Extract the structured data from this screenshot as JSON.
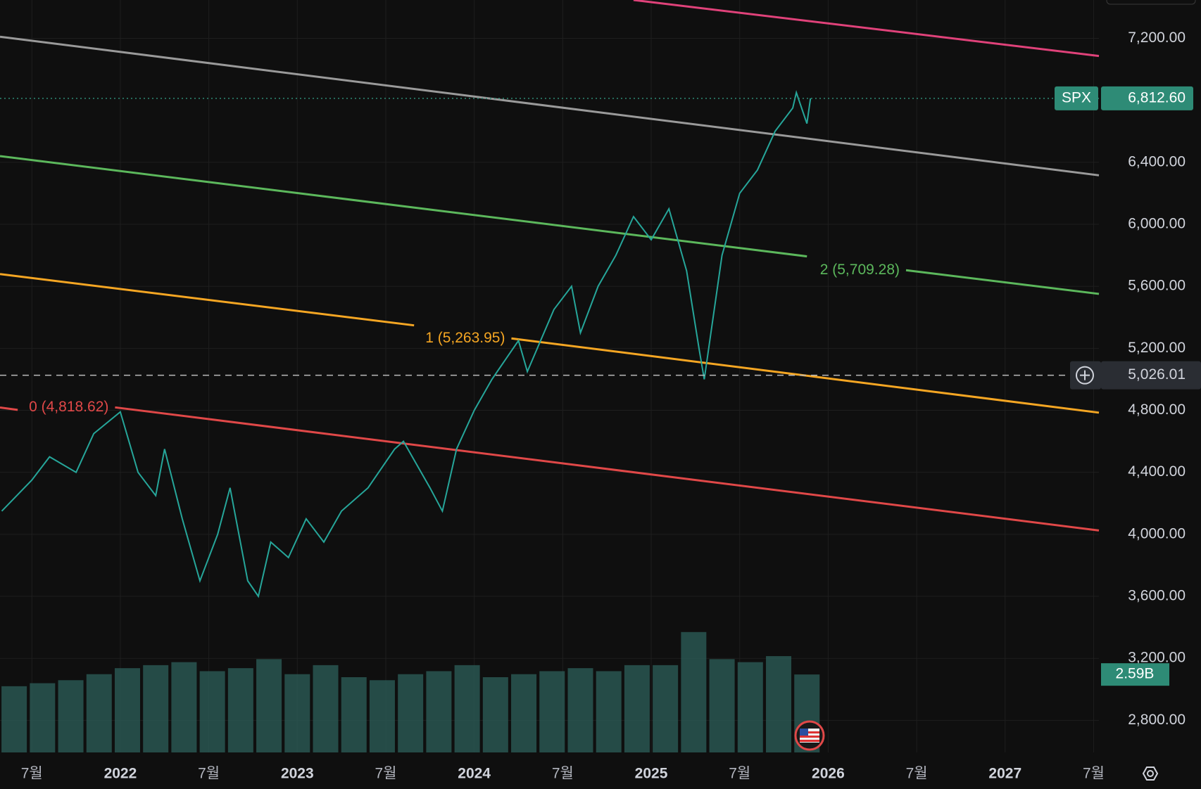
{
  "chart_data": {
    "type": "line",
    "xlim": [
      2021.32,
      2027.53
    ],
    "ylim": [
      2593,
      7447
    ],
    "grid": true,
    "xticks": [
      {
        "value": 2021.5,
        "label": "7월"
      },
      2022,
      {
        "value": 2022.5,
        "label": "7월"
      },
      2023,
      {
        "value": 2023.5,
        "label": "7월"
      },
      2024,
      {
        "value": 2024.5,
        "label": "7월"
      },
      2025,
      {
        "value": 2025.5,
        "label": "7월"
      },
      2026,
      {
        "value": 2026.5,
        "label": "7월"
      },
      2027,
      {
        "value": 2027.5,
        "label": "7월"
      }
    ],
    "yticks": [
      {
        "value": 2800,
        "label": "2,800.00"
      },
      {
        "value": 3200,
        "label": "3,200.00"
      },
      {
        "value": 3600,
        "label": "3,600.00"
      },
      {
        "value": 4000,
        "label": "4,000.00"
      },
      {
        "value": 4400,
        "label": "4,400.00"
      },
      {
        "value": 4800,
        "label": "4,800.00"
      },
      {
        "value": 5200,
        "label": "5,200.00"
      },
      {
        "value": 5600,
        "label": "5,600.00"
      },
      {
        "value": 6000,
        "label": "6,000.00"
      },
      {
        "value": 6400,
        "label": "6,400.00"
      },
      {
        "value": 7200,
        "label": "7,200.00"
      }
    ],
    "series": [
      {
        "name": "SPX",
        "color": "#26a69a",
        "x": [
          2021.33,
          2021.5,
          2021.6,
          2021.75,
          2021.85,
          2022.0,
          2022.1,
          2022.2,
          2022.25,
          2022.35,
          2022.45,
          2022.55,
          2022.62,
          2022.72,
          2022.78,
          2022.85,
          2022.95,
          2023.05,
          2023.15,
          2023.25,
          2023.4,
          2023.55,
          2023.6,
          2023.75,
          2023.82,
          2023.9,
          2024.0,
          2024.1,
          2024.25,
          2024.3,
          2024.45,
          2024.55,
          2024.6,
          2024.7,
          2024.8,
          2024.9,
          2025.0,
          2025.1,
          2025.2,
          2025.27,
          2025.3,
          2025.4,
          2025.5,
          2025.6,
          2025.7,
          2025.8,
          2025.82,
          2025.88,
          2025.9
        ],
        "values": [
          4150,
          4350,
          4500,
          4400,
          4650,
          4790,
          4400,
          4250,
          4550,
          4100,
          3700,
          4000,
          4300,
          3700,
          3600,
          3950,
          3850,
          4100,
          3950,
          4150,
          4300,
          4550,
          4600,
          4300,
          4150,
          4550,
          4800,
          5000,
          5250,
          5050,
          5450,
          5600,
          5300,
          5600,
          5800,
          6050,
          5900,
          6100,
          5700,
          5200,
          5000,
          5800,
          6200,
          6350,
          6600,
          6750,
          6850,
          6650,
          6812.6
        ]
      }
    ],
    "last_price": {
      "value": 6812.6,
      "label": "6,812.60"
    },
    "crosshair": {
      "value": 5026.01,
      "label": "5,026.01"
    },
    "volume": {
      "color": "#2b5a55",
      "x": [
        2021.4,
        2021.56,
        2021.72,
        2021.88,
        2022.04,
        2022.2,
        2022.36,
        2022.52,
        2022.68,
        2022.84,
        2023.0,
        2023.16,
        2023.32,
        2023.48,
        2023.64,
        2023.8,
        2023.96,
        2024.12,
        2024.28,
        2024.44,
        2024.6,
        2024.76,
        2024.92,
        2025.08,
        2025.24,
        2025.4,
        2025.56,
        2025.72,
        2025.88
      ],
      "values": [
        2.2,
        2.3,
        2.4,
        2.6,
        2.8,
        2.9,
        3.0,
        2.7,
        2.8,
        3.1,
        2.6,
        2.9,
        2.5,
        2.4,
        2.6,
        2.7,
        2.9,
        2.5,
        2.6,
        2.7,
        2.8,
        2.7,
        2.9,
        2.9,
        4.0,
        3.1,
        3.0,
        3.2,
        2.59
      ],
      "ylim": [
        0,
        25
      ],
      "last": {
        "value": 2.59,
        "label": "2.59B"
      }
    },
    "drawings": [
      {
        "color": "#e0427a",
        "start": [
          2024.9,
          7447
        ],
        "end": [
          2027.53,
          7086
        ]
      },
      {
        "color": "#9a9a9a",
        "start": [
          2021.32,
          7210
        ],
        "end": [
          2027.53,
          6316
        ]
      },
      {
        "color": "#5cb85c",
        "start": [
          2021.32,
          6440
        ],
        "end": [
          2025.88,
          5793
        ]
      },
      {
        "color": "#5cb85c",
        "start": [
          2026.44,
          5704
        ],
        "end": [
          2027.53,
          5551
        ],
        "label": "2 (5,709.28)"
      },
      {
        "color": "#f5a623",
        "start": [
          2021.32,
          5679
        ],
        "end": [
          2023.66,
          5348
        ]
      },
      {
        "color": "#f5a623",
        "start": [
          2024.21,
          5264
        ],
        "end": [
          2027.53,
          4785
        ],
        "label": "1 (5,263.95)"
      },
      {
        "color": "#e04848",
        "start": [
          2021.32,
          4818
        ],
        "end": [
          2021.42,
          4803
        ]
      },
      {
        "color": "#e04848",
        "start": [
          2021.97,
          4819
        ],
        "end": [
          2027.53,
          4025
        ],
        "label": "0 (4,818.62)"
      }
    ]
  }
}
